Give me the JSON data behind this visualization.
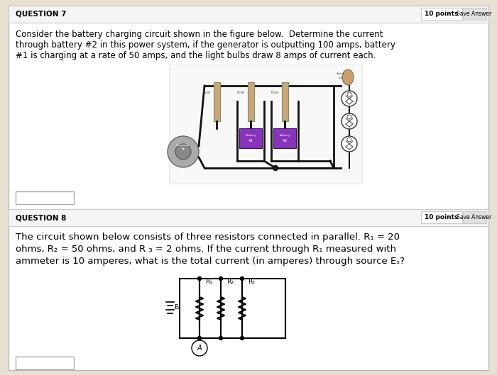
{
  "bg_color": "#e8e0d0",
  "page_bg": "#ffffff",
  "q7_label": "QUESTION 7",
  "q8_label": "QUESTION 8",
  "points_label": "10 points",
  "save_answer": "Save Answer",
  "q7_text_line1": "Consider the battery charging circuit shown in the figure below.  Determine the current",
  "q7_text_line2": "through battery #2 in this power system, if the generator is outputting 100 amps, battery",
  "q7_text_line3": "#1 is charging at a rate of 50 amps, and the light bulbs draw 8 amps of current each.",
  "q8_text_line1": "The circuit shown below consists of three resistors connected in parallel. R₁ = 20",
  "q8_text_line2": "ohms, R₂ = 50 ohms, and R ₃ = 2 ohms. If the current through R₁ measured with",
  "q8_text_line3": "ammeter is 10 amperes, what is the total current (in amperes) through source Eₛ?",
  "battery_purple": "#8833bb",
  "circuit_line_color": "#111111",
  "fuse_tan": "#c8a878",
  "generator_gray": "#888888",
  "header_bg": "#f5f5f5",
  "border_color": "#cccccc",
  "save_btn_color": "#e0e0e0",
  "points_text_color": "#333333"
}
